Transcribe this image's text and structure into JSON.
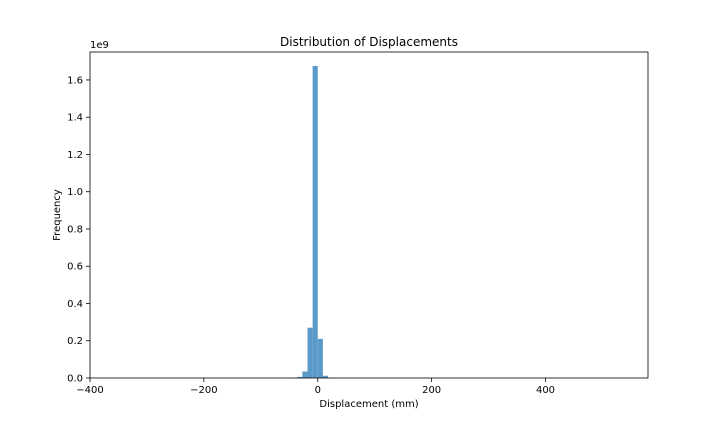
{
  "chart_data": {
    "type": "bar",
    "title": "Distribution of Displacements",
    "xlabel": "Displacement (mm)",
    "ylabel": "Frequency",
    "y_scale_label": "1e9",
    "xlim": [
      -400,
      580
    ],
    "ylim": [
      0,
      1.75
    ],
    "grid": false,
    "bar_color": "#5b9bc9",
    "x_ticks": [
      {
        "value": -400,
        "label": "−400"
      },
      {
        "value": -200,
        "label": "−200"
      },
      {
        "value": 0,
        "label": "0"
      },
      {
        "value": 200,
        "label": "200"
      },
      {
        "value": 400,
        "label": "400"
      }
    ],
    "y_ticks": [
      {
        "value": 0.0,
        "label": "0.0"
      },
      {
        "value": 0.2,
        "label": "0.2"
      },
      {
        "value": 0.4,
        "label": "0.4"
      },
      {
        "value": 0.6,
        "label": "0.6"
      },
      {
        "value": 0.8,
        "label": "0.8"
      },
      {
        "value": 1.0,
        "label": "1.0"
      },
      {
        "value": 1.2,
        "label": "1.2"
      },
      {
        "value": 1.4,
        "label": "1.4"
      },
      {
        "value": 1.6,
        "label": "1.6"
      }
    ],
    "bins": [
      {
        "x0": -45,
        "x1": -36,
        "value": 0.002
      },
      {
        "x0": -36,
        "x1": -27,
        "value": 0.006
      },
      {
        "x0": -27,
        "x1": -18,
        "value": 0.035
      },
      {
        "x0": -18,
        "x1": -9,
        "value": 0.27
      },
      {
        "x0": -9,
        "x1": 0,
        "value": 1.675
      },
      {
        "x0": 0,
        "x1": 9,
        "value": 0.21
      },
      {
        "x0": 9,
        "x1": 18,
        "value": 0.012
      },
      {
        "x0": 18,
        "x1": 27,
        "value": 0.002
      }
    ]
  }
}
